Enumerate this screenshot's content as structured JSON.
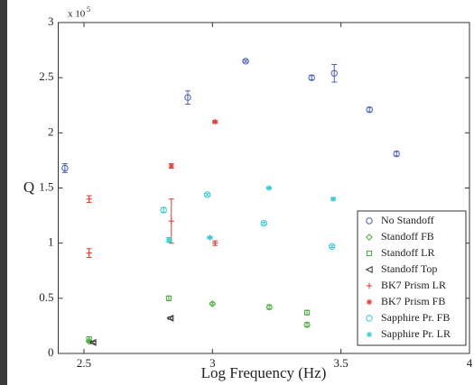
{
  "chart_data": {
    "type": "scatter",
    "xlabel": "Log Frequency (Hz)",
    "ylabel": "Q",
    "y_multiplier": "x 10",
    "y_multiplier_exponent": "5",
    "xlim": [
      2.4,
      4
    ],
    "xticks": [
      2.5,
      3,
      3.5,
      4
    ],
    "ylim": [
      0,
      3
    ],
    "yticks": [
      0,
      0.5,
      1,
      1.5,
      2,
      2.5,
      3
    ],
    "legend": "lower right",
    "grid": false,
    "series": [
      {
        "name": "No Standoff",
        "marker": "circle",
        "color": "#4a5fb0",
        "x": [
          2.426,
          2.904,
          3.129,
          3.386,
          3.474,
          3.611,
          3.716
        ],
        "values": [
          1.68,
          2.32,
          2.65,
          2.5,
          2.54,
          2.21,
          1.81
        ],
        "errors": [
          0.04,
          0.06,
          0.01,
          0.02,
          0.08,
          0.02,
          0.02
        ]
      },
      {
        "name": "Standoff FB",
        "marker": "diamond",
        "color": "#4aab3e",
        "x": [
          2.52,
          3.0,
          3.221,
          3.368
        ],
        "values": [
          0.11,
          0.45,
          0.42,
          0.26
        ],
        "errors": [
          0.01,
          0.01,
          0.02,
          0.02
        ]
      },
      {
        "name": "Standoff LR",
        "marker": "square",
        "color": "#4aab3e",
        "x": [
          2.52,
          2.83,
          3.368
        ],
        "values": [
          0.13,
          0.5,
          0.37
        ],
        "errors": [
          0.02,
          0.02,
          0.02
        ]
      },
      {
        "name": "Standoff Top",
        "marker": "triangle-left",
        "color": "#333333",
        "x": [
          2.535,
          2.836
        ],
        "values": [
          0.1,
          0.32
        ],
        "errors": [
          0.01,
          0.01
        ]
      },
      {
        "name": "BK7 Prism LR",
        "marker": "plus",
        "color": "#e03a2e",
        "x": [
          2.52,
          2.52,
          2.84,
          3.01
        ],
        "values": [
          1.4,
          0.91,
          1.2,
          1.0
        ],
        "errors": [
          0.03,
          0.04,
          0.2,
          0.02
        ]
      },
      {
        "name": "BK7 Prism FB",
        "marker": "star",
        "color": "#e03a2e",
        "x": [
          2.84,
          3.01
        ],
        "values": [
          1.7,
          2.1
        ],
        "errors": [
          0.02,
          0.01
        ]
      },
      {
        "name": "Sapphire Pr. FB",
        "marker": "circle",
        "color": "#3cc8d8",
        "x": [
          2.81,
          2.98,
          3.2,
          3.465
        ],
        "values": [
          1.3,
          1.44,
          1.18,
          0.97
        ],
        "errors": [
          0.02,
          0.01,
          0.01,
          0.01
        ]
      },
      {
        "name": "Sapphire Pr. LR",
        "marker": "star",
        "color": "#3cc8d8",
        "x": [
          2.83,
          2.99,
          3.22,
          3.47
        ],
        "values": [
          1.03,
          1.05,
          1.5,
          1.4
        ],
        "errors": [
          0.02,
          0.01,
          0.01,
          0.01
        ]
      }
    ]
  }
}
